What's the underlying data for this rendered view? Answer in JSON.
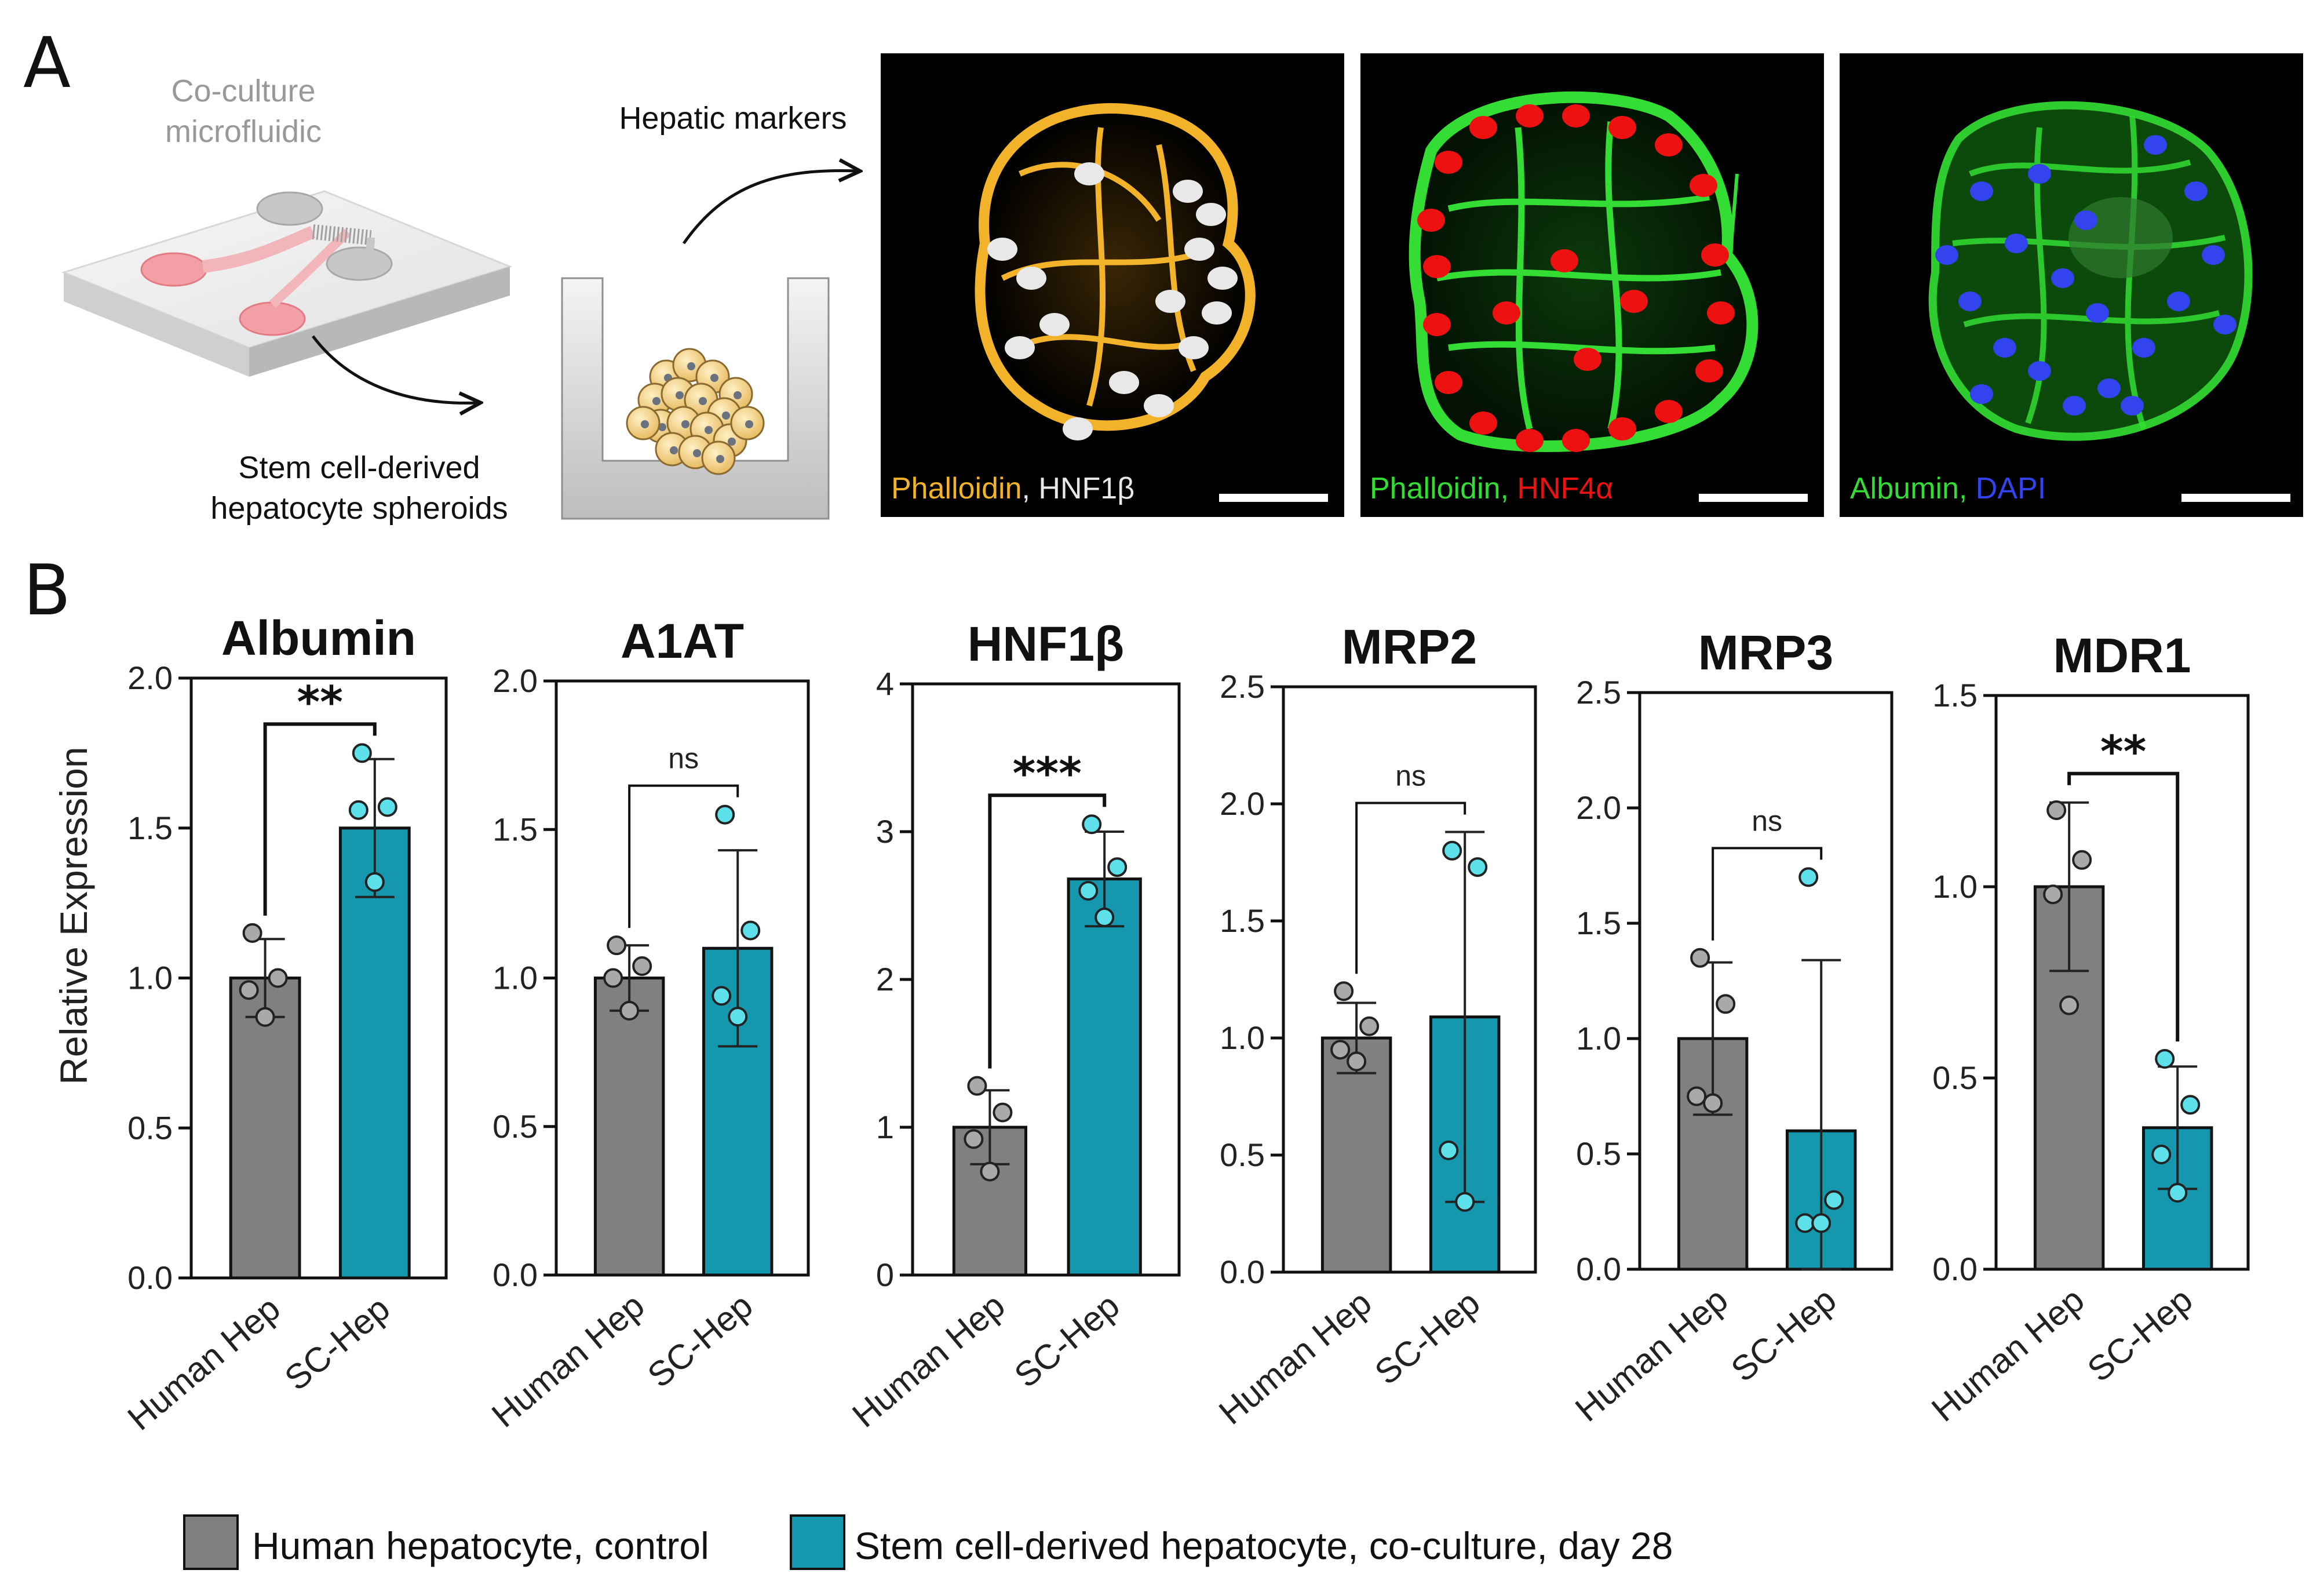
{
  "panel_a": {
    "letter": "A",
    "device_label": [
      "Co-culture",
      "microfluidic"
    ],
    "markers_label": "Hepatic markers",
    "spheroid_label": [
      "Stem cell-derived",
      "hepatocyte spheroids"
    ],
    "images": [
      {
        "stain_1": "Phalloidin",
        "sep": ", ",
        "stain_2": "HNF1β",
        "color_1": "#f2b22a",
        "color_2": "#e8e8e8"
      },
      {
        "stain_1": "Phalloidin",
        "sep": ", ",
        "stain_2": "HNF4α",
        "color_1": "#33dd33",
        "color_2": "#ee1111"
      },
      {
        "stain_1": "Albumin",
        "sep": ", ",
        "stain_2": "DAPI",
        "color_1": "#33dd33",
        "color_2": "#3344ee"
      }
    ]
  },
  "panel_b": {
    "letter": "B",
    "ylabel": "Relative Expression"
  },
  "colors": {
    "human": "#808080",
    "sc": "#1598ad",
    "sc_point": "#5ee0ea",
    "human_point": "#a9a9a9"
  },
  "legend": [
    {
      "label": "Human hepatocyte, control",
      "color": "#808080"
    },
    {
      "label": "Stem cell-derived hepatocyte, co-culture, day 28",
      "color": "#1598ad"
    }
  ],
  "chart_data": [
    {
      "type": "bar",
      "title": "Albumin",
      "categories": [
        "Human Hep",
        "SC-Hep"
      ],
      "ylim": [
        0,
        2.0
      ],
      "yticks": [
        "0.0",
        "0.5",
        "1.0",
        "1.5",
        "2.0"
      ],
      "values": [
        1.0,
        1.5
      ],
      "errors": [
        0.13,
        0.23
      ],
      "points": [
        [
          1.15,
          1.0,
          0.96,
          0.87
        ],
        [
          1.75,
          1.57,
          1.56,
          1.32
        ]
      ],
      "significance": "**"
    },
    {
      "type": "bar",
      "title": "A1AT",
      "categories": [
        "Human Hep",
        "SC-Hep"
      ],
      "ylim": [
        0,
        2.0
      ],
      "yticks": [
        "0.0",
        "0.5",
        "1.0",
        "1.5",
        "2.0"
      ],
      "values": [
        1.0,
        1.1
      ],
      "errors": [
        0.11,
        0.33
      ],
      "points": [
        [
          1.11,
          1.04,
          1.0,
          0.89
        ],
        [
          1.55,
          1.16,
          0.94,
          0.87
        ]
      ],
      "significance": "ns"
    },
    {
      "type": "bar",
      "title": "HNF1β",
      "categories": [
        "Human Hep",
        "SC-Hep"
      ],
      "ylim": [
        0,
        4
      ],
      "yticks": [
        "0",
        "1",
        "2",
        "3",
        "4"
      ],
      "values": [
        1.0,
        2.68
      ],
      "errors": [
        0.25,
        0.32
      ],
      "points": [
        [
          1.28,
          1.1,
          0.92,
          0.7
        ],
        [
          3.05,
          2.76,
          2.6,
          2.42
        ]
      ],
      "significance": "***"
    },
    {
      "type": "bar",
      "title": "MRP2",
      "categories": [
        "Human Hep",
        "SC-Hep"
      ],
      "ylim": [
        0,
        2.5
      ],
      "yticks": [
        "0.0",
        "0.5",
        "1.0",
        "1.5",
        "2.0",
        "2.5"
      ],
      "values": [
        1.0,
        1.09
      ],
      "errors": [
        0.15,
        0.79
      ],
      "points": [
        [
          1.2,
          1.05,
          0.95,
          0.9
        ],
        [
          1.8,
          1.73,
          0.52,
          0.3
        ]
      ],
      "significance": "ns"
    },
    {
      "type": "bar",
      "title": "MRP3",
      "categories": [
        "Human Hep",
        "SC-Hep"
      ],
      "ylim": [
        0,
        2.5
      ],
      "yticks": [
        "0.0",
        "0.5",
        "1.0",
        "1.5",
        "2.0",
        "2.5"
      ],
      "values": [
        1.0,
        0.6
      ],
      "errors": [
        0.33,
        0.74
      ],
      "points": [
        [
          1.35,
          1.15,
          0.75,
          0.72
        ],
        [
          1.7,
          0.3,
          0.2,
          0.2
        ]
      ],
      "significance": "ns"
    },
    {
      "type": "bar",
      "title": "MDR1",
      "categories": [
        "Human Hep",
        "SC-Hep"
      ],
      "ylim": [
        0,
        1.5
      ],
      "yticks": [
        "0.0",
        "0.5",
        "1.0",
        "1.5"
      ],
      "values": [
        1.0,
        0.37
      ],
      "errors": [
        0.22,
        0.16
      ],
      "points": [
        [
          1.2,
          1.07,
          0.98,
          0.69
        ],
        [
          0.55,
          0.43,
          0.3,
          0.2
        ]
      ],
      "significance": "**"
    }
  ]
}
